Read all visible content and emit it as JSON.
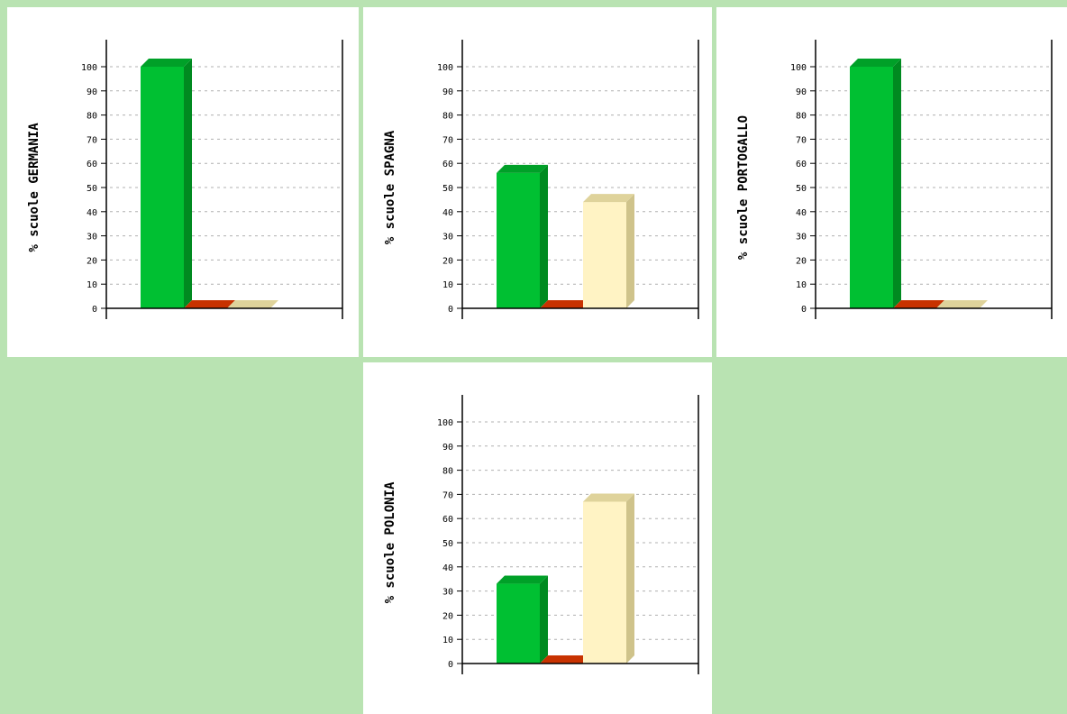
{
  "colors": {
    "cell_border": "#b9e3b2",
    "series": [
      {
        "front": "#00c032",
        "top": "#00a028",
        "side": "#008a20"
      },
      {
        "front": "#c83200",
        "top": "#c83200",
        "side": "#a02800"
      },
      {
        "front": "#fff3c4",
        "top": "#dfd39b",
        "side": "#cfc38b"
      }
    ]
  },
  "chart_data": [
    {
      "type": "bar",
      "ylabel": "% scuole GERMANIA",
      "values": [
        100,
        0,
        0
      ],
      "ylim": [
        0,
        100
      ],
      "yticks": [
        0,
        10,
        20,
        30,
        40,
        50,
        60,
        70,
        80,
        90,
        100
      ],
      "grid": true
    },
    {
      "type": "bar",
      "ylabel": "% scuole SPAGNA",
      "values": [
        56,
        0,
        44
      ],
      "ylim": [
        0,
        100
      ],
      "yticks": [
        0,
        10,
        20,
        30,
        40,
        50,
        60,
        70,
        80,
        90,
        100
      ],
      "grid": true
    },
    {
      "type": "bar",
      "ylabel": "% scuole PORTOGALLO",
      "values": [
        100,
        0,
        0
      ],
      "ylim": [
        0,
        100
      ],
      "yticks": [
        0,
        10,
        20,
        30,
        40,
        50,
        60,
        70,
        80,
        90,
        100
      ],
      "grid": true
    },
    {
      "type": "bar",
      "ylabel": "% scuole POLONIA",
      "values": [
        33,
        0,
        67
      ],
      "ylim": [
        0,
        100
      ],
      "yticks": [
        0,
        10,
        20,
        30,
        40,
        50,
        60,
        70,
        80,
        90,
        100
      ],
      "grid": true
    }
  ]
}
